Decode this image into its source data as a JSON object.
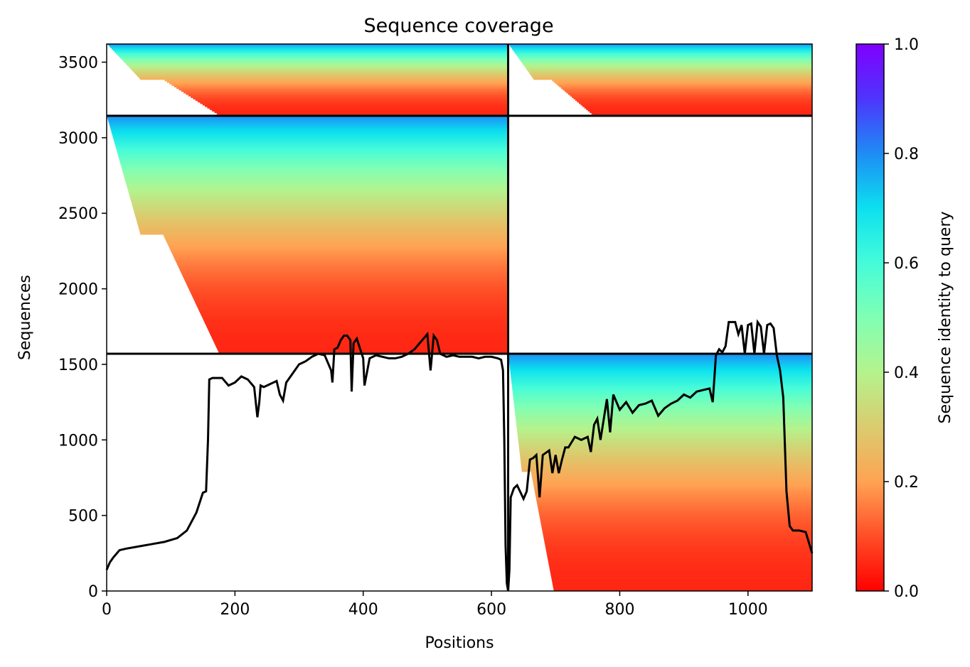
{
  "chart_data": {
    "type": "heatmap",
    "title": "Sequence coverage",
    "xlabel": "Positions",
    "ylabel": "Sequences",
    "xlim": [
      0,
      1100
    ],
    "ylim": [
      0,
      3620
    ],
    "xticks": [
      "0",
      "200",
      "400",
      "600",
      "800",
      "1000"
    ],
    "xtick_values": [
      0,
      200,
      400,
      600,
      800,
      1000
    ],
    "yticks": [
      "0",
      "500",
      "1000",
      "1500",
      "2000",
      "2500",
      "3000",
      "3500"
    ],
    "ytick_values": [
      0,
      500,
      1000,
      1500,
      2000,
      2500,
      3000,
      3500
    ],
    "colorbar": {
      "label": "Sequence identity to query",
      "ticks": [
        "0.0",
        "0.2",
        "0.4",
        "0.6",
        "0.8",
        "1.0"
      ],
      "tick_values": [
        0,
        0.2,
        0.4,
        0.6,
        0.8,
        1.0
      ],
      "colormap": "rainbow_r"
    },
    "chain_boundaries": {
      "x": [
        626
      ],
      "y": [
        1570,
        3145
      ]
    },
    "coverage_blocks": [
      {
        "name": "block-chain1-all",
        "x_range": [
          0,
          626
        ],
        "y_range": [
          3145,
          3620
        ]
      },
      {
        "name": "block-chain2-all",
        "x_range": [
          626,
          1100
        ],
        "y_range": [
          3145,
          3620
        ]
      },
      {
        "name": "block-chain1-only",
        "x_range": [
          0,
          626
        ],
        "y_range": [
          1570,
          3145
        ]
      },
      {
        "name": "block-chain2-only",
        "x_range": [
          626,
          1100
        ],
        "y_range": [
          0,
          1570
        ]
      }
    ],
    "series": [
      {
        "type": "line",
        "color": "#000000",
        "x": [
          0,
          5,
          10,
          20,
          30,
          50,
          70,
          90,
          110,
          125,
          130,
          140,
          150,
          155,
          158,
          160,
          165,
          170,
          180,
          190,
          200,
          210,
          220,
          230,
          235,
          238,
          240,
          245,
          255,
          265,
          270,
          275,
          280,
          290,
          300,
          310,
          320,
          330,
          340,
          350,
          352,
          355,
          360,
          365,
          370,
          375,
          380,
          382,
          385,
          390,
          400,
          402,
          410,
          420,
          430,
          440,
          450,
          460,
          470,
          480,
          490,
          500,
          505,
          510,
          515,
          520,
          530,
          540,
          550,
          560,
          570,
          580,
          590,
          600,
          610,
          615,
          618,
          620,
          622,
          624,
          626,
          628,
          630,
          635,
          640,
          650,
          655,
          660,
          665,
          670,
          675,
          680,
          690,
          695,
          700,
          705,
          710,
          715,
          720,
          730,
          740,
          750,
          755,
          760,
          765,
          770,
          780,
          785,
          790,
          800,
          810,
          820,
          830,
          840,
          850,
          860,
          870,
          880,
          890,
          900,
          910,
          920,
          930,
          940,
          945,
          950,
          955,
          960,
          965,
          970,
          975,
          980,
          985,
          990,
          995,
          1000,
          1005,
          1010,
          1015,
          1020,
          1025,
          1030,
          1035,
          1040,
          1045,
          1050,
          1055,
          1060,
          1065,
          1070,
          1080,
          1090,
          1100
        ],
        "y": [
          140,
          190,
          220,
          270,
          280,
          295,
          310,
          325,
          350,
          400,
          440,
          520,
          650,
          660,
          1000,
          1400,
          1410,
          1410,
          1410,
          1360,
          1380,
          1420,
          1400,
          1350,
          1150,
          1250,
          1360,
          1350,
          1370,
          1390,
          1300,
          1260,
          1380,
          1440,
          1500,
          1520,
          1550,
          1570,
          1560,
          1460,
          1380,
          1600,
          1610,
          1660,
          1690,
          1690,
          1660,
          1320,
          1640,
          1670,
          1540,
          1360,
          1540,
          1560,
          1550,
          1540,
          1540,
          1550,
          1570,
          1600,
          1650,
          1700,
          1460,
          1690,
          1660,
          1570,
          1550,
          1560,
          1550,
          1550,
          1550,
          1540,
          1550,
          1550,
          1540,
          1530,
          1460,
          1000,
          300,
          50,
          0,
          140,
          620,
          680,
          700,
          610,
          660,
          870,
          880,
          900,
          620,
          900,
          930,
          780,
          900,
          780,
          870,
          950,
          950,
          1020,
          1000,
          1020,
          920,
          1100,
          1140,
          1000,
          1270,
          1050,
          1300,
          1200,
          1250,
          1180,
          1230,
          1240,
          1260,
          1160,
          1210,
          1240,
          1260,
          1300,
          1280,
          1320,
          1330,
          1340,
          1250,
          1560,
          1600,
          1580,
          1620,
          1780,
          1780,
          1780,
          1700,
          1760,
          1570,
          1760,
          1770,
          1570,
          1780,
          1750,
          1570,
          1760,
          1770,
          1740,
          1560,
          1460,
          1280,
          660,
          430,
          400,
          400,
          390,
          250
        ]
      }
    ],
    "grid": false
  }
}
